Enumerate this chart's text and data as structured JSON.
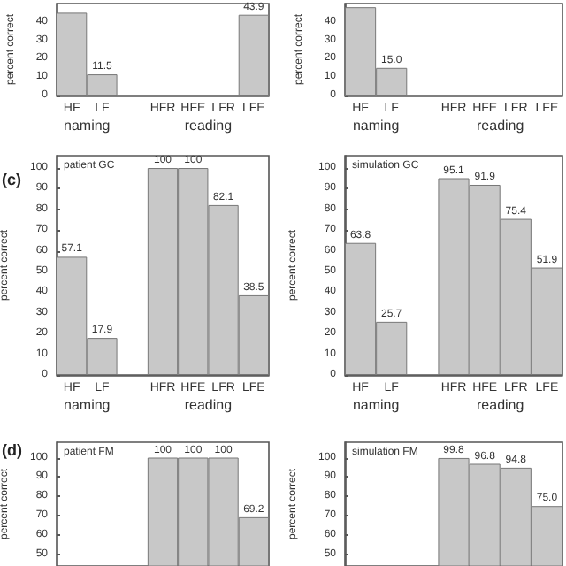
{
  "chart_data": [
    {
      "type": "bar",
      "ylabel": "percent correct",
      "categories": [
        "HF",
        "LF",
        null,
        "HFR",
        "HFE",
        "LFR",
        "LFE"
      ],
      "values": [
        45,
        11.5,
        null,
        null,
        null,
        null,
        43.9
      ],
      "value_labels": [
        null,
        "11.5",
        null,
        null,
        null,
        null,
        "43.9"
      ],
      "color": "#c8c8c8",
      "ylim": [
        0,
        50
      ],
      "yticks": [
        0,
        10,
        20,
        30,
        40
      ],
      "annotations": [
        "naming",
        "reading"
      ]
    },
    {
      "type": "bar",
      "ylabel": "percent correct",
      "categories": [
        "HF",
        "LF",
        null,
        "HFR",
        "HFE",
        "LFR",
        "LFE"
      ],
      "values": [
        48,
        15.0,
        null,
        null,
        null,
        null,
        null
      ],
      "value_labels": [
        null,
        "15.0",
        null,
        null,
        null,
        null,
        null
      ],
      "color": "#c8c8c8",
      "ylim": [
        0,
        50
      ],
      "yticks": [
        0,
        10,
        20,
        30,
        40
      ],
      "annotations": [
        "naming",
        "reading"
      ]
    },
    {
      "type": "bar",
      "title": "(c)",
      "subtitle": "patient GC",
      "ylabel": "percent correct",
      "categories": [
        "HF",
        "LF",
        null,
        "HFR",
        "HFE",
        "LFR",
        "LFE"
      ],
      "values": [
        57.1,
        17.9,
        null,
        100,
        100,
        82.1,
        38.5
      ],
      "data_labels": true,
      "color": "#c8c8c8",
      "ylim": [
        0,
        106
      ],
      "yticks": [
        0,
        10,
        20,
        30,
        40,
        50,
        60,
        70,
        80,
        90,
        100
      ],
      "annotations": [
        "naming",
        "reading"
      ]
    },
    {
      "type": "bar",
      "subtitle": "simulation GC",
      "ylabel": "percent correct",
      "categories": [
        "HF",
        "LF",
        null,
        "HFR",
        "HFE",
        "LFR",
        "LFE"
      ],
      "values": [
        63.8,
        25.7,
        null,
        95.1,
        91.9,
        75.4,
        51.9
      ],
      "data_labels": true,
      "color": "#c8c8c8",
      "ylim": [
        0,
        106
      ],
      "yticks": [
        0,
        10,
        20,
        30,
        40,
        50,
        60,
        70,
        80,
        90,
        100
      ],
      "annotations": [
        "naming",
        "reading"
      ]
    },
    {
      "type": "bar",
      "title": "(d)",
      "subtitle": "patient FM",
      "ylabel": "percent correct",
      "categories": [
        null,
        null,
        null,
        null,
        null,
        null,
        null
      ],
      "values": [
        null,
        null,
        null,
        100,
        100,
        100,
        69.2
      ],
      "data_labels": true,
      "color": "#c8c8c8",
      "ylim": [
        44,
        108
      ],
      "yticks": [
        50,
        60,
        70,
        80,
        90,
        100
      ],
      "tick_labels": "y"
    },
    {
      "type": "bar",
      "subtitle": "simulation FM",
      "ylabel": "percent correct",
      "categories": [
        null,
        null,
        null,
        null,
        null,
        null,
        null
      ],
      "values": [
        null,
        null,
        null,
        99.8,
        96.8,
        94.8,
        75.0
      ],
      "value_labels": [
        null,
        null,
        null,
        "99.8",
        "96.8",
        "94.8",
        "75.0"
      ],
      "color": "#c8c8c8",
      "ylim": [
        44,
        108
      ],
      "yticks": [
        50,
        60,
        70,
        80,
        90,
        100
      ],
      "tick_labels": "y"
    }
  ]
}
